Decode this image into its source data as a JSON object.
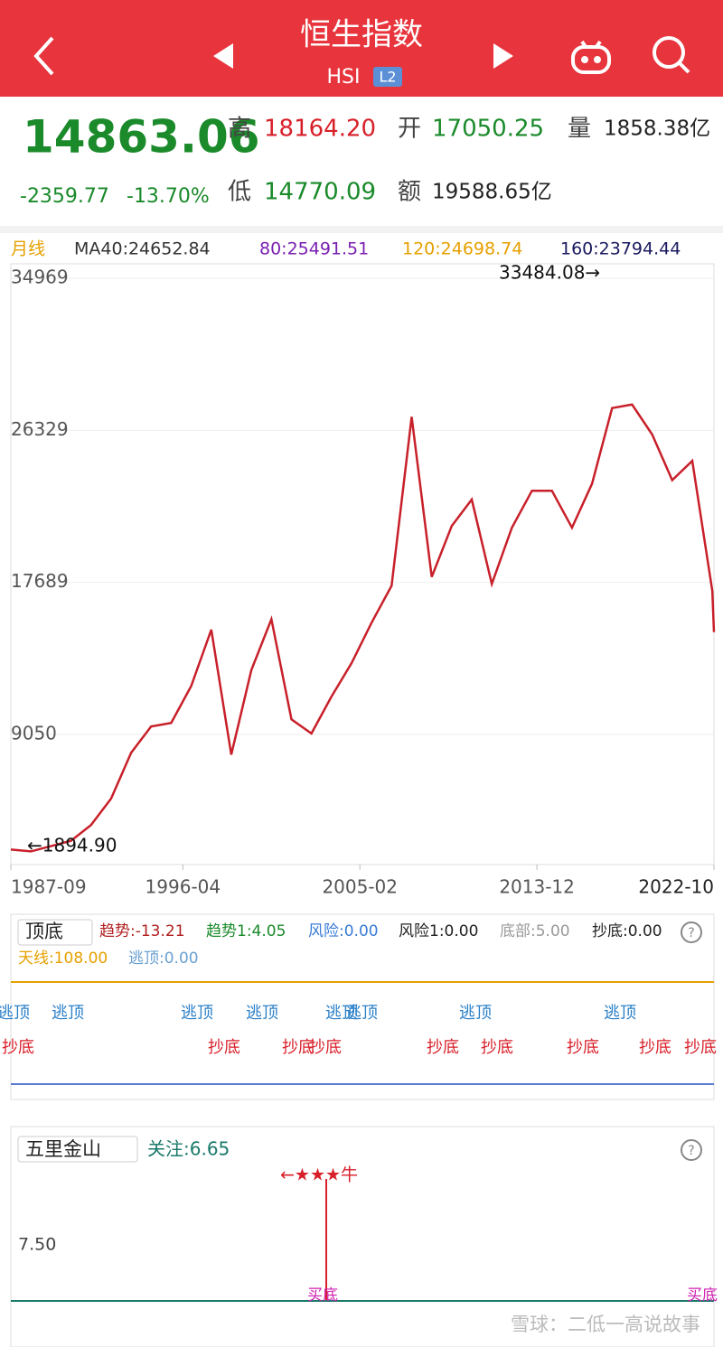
{
  "header": {
    "title": "恒生指数",
    "code": "HSI",
    "badge": "L2"
  },
  "quote": {
    "price": "14863.06",
    "change": "-2359.77",
    "change_pct": "-13.70%",
    "high_label": "高",
    "high": "18164.20",
    "open_label": "开",
    "open": "17050.25",
    "volume_label": "量",
    "volume": "1858.38亿",
    "low_label": "低",
    "low": "14770.09",
    "amount_label": "额",
    "amount": "19588.65亿"
  },
  "ma_row": {
    "period": "月线",
    "ma40": "MA40:24652.84",
    "ma80": "80:25491.51",
    "ma120": "120:24698.74",
    "ma160": "160:23794.44"
  },
  "chart_data": {
    "type": "line",
    "x": [
      "1987-09",
      "1988-09",
      "1989-09",
      "1990-09",
      "1991-09",
      "1992-09",
      "1993-09",
      "1994-09",
      "1995-09",
      "1996-09",
      "1997-09",
      "1998-09",
      "1999-09",
      "2000-09",
      "2001-09",
      "2002-09",
      "2003-09",
      "2004-09",
      "2005-09",
      "2006-09",
      "2007-09",
      "2008-09",
      "2009-09",
      "2010-09",
      "2011-09",
      "2012-09",
      "2013-09",
      "2014-09",
      "2015-09",
      "2016-09",
      "2017-09",
      "2018-09",
      "2019-09",
      "2020-09",
      "2021-09",
      "2022-09",
      "2022-10"
    ],
    "series": [
      {
        "name": "HSI",
        "color": "#c8202a",
        "values": [
          2500,
          2400,
          2700,
          3000,
          3900,
          5400,
          8000,
          9500,
          9700,
          11800,
          15000,
          7900,
          12700,
          15600,
          9900,
          9100,
          11200,
          13100,
          15400,
          17500,
          27100,
          18000,
          20900,
          22400,
          17600,
          20800,
          22900,
          22900,
          20800,
          23300,
          27600,
          27800,
          26100,
          23500,
          24600,
          17200,
          14863
        ]
      }
    ],
    "ylim": [
      1650,
      35800
    ],
    "yticks": [
      9050,
      17689,
      26329,
      34969
    ],
    "xticks": [
      "1987-09",
      "1996-04",
      "2005-02",
      "2013-12",
      "2022-10"
    ],
    "annotations": [
      "33484.08→",
      "←1894.90"
    ]
  },
  "indicator": {
    "name": "顶底",
    "trend": "趋势:-13.21",
    "trend1": "趋势1:4.05",
    "risk": "风险:0.00",
    "risk1": "风险1:0.00",
    "bottom": "底部:5.00",
    "buy": "抄底:0.00",
    "antenna": "天线:108.00",
    "escape": "逃顶:0.00",
    "top_signals": [
      "逃顶",
      "逃顶",
      "逃顶",
      "逃顶",
      "逃顶",
      "逃顶",
      "逃顶",
      "逃顶"
    ],
    "bottom_signals": [
      "抄底",
      "抄底",
      "抄底",
      "抄底",
      "抄底",
      "抄底",
      "抄底",
      "抄底",
      "抄底"
    ]
  },
  "wuli": {
    "name": "五里金山",
    "focus": "关注:6.65",
    "signal": "←★★★牛",
    "tick": "7.50",
    "buy_signals": [
      "买底",
      "买底"
    ]
  },
  "watermark": "雪球：二低一高说故事"
}
